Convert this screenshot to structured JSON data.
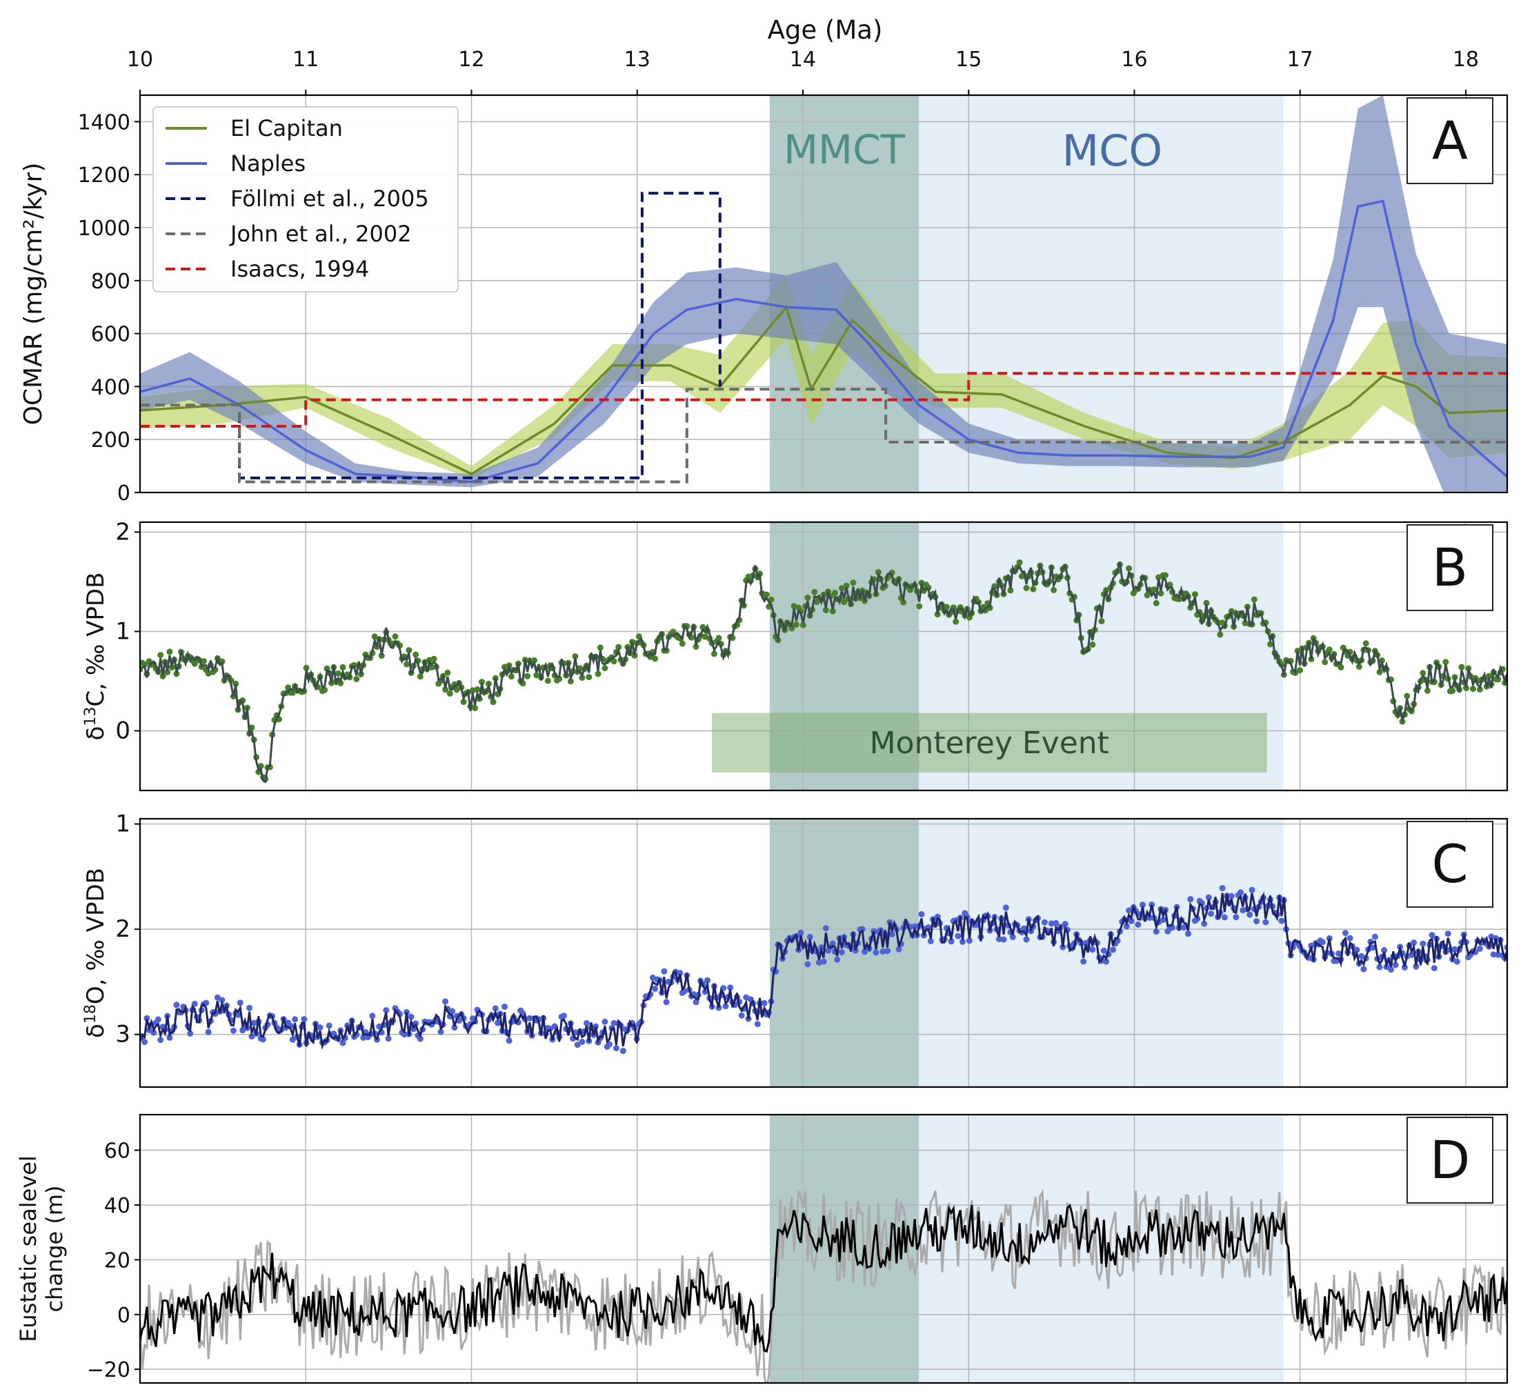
{
  "x_axis": {
    "label": "Age (Ma)",
    "ticks": [
      "10",
      "11",
      "12",
      "13",
      "14",
      "15",
      "16",
      "17",
      "18"
    ]
  },
  "bands": [
    {
      "name": "MMCT",
      "from": 13.8,
      "to": 14.7,
      "color": "#7fa8a4"
    },
    {
      "name": "MCO",
      "from": 14.7,
      "to": 16.9,
      "color": "#c9dff0"
    }
  ],
  "chart_data": [
    {
      "panel": "A",
      "type": "line",
      "ylabel": "OCMAR (mg/cm²/kyr)",
      "ylim": [
        0,
        1500
      ],
      "yticks": [
        "0",
        "200",
        "400",
        "600",
        "800",
        "1000",
        "1200",
        "1400"
      ],
      "legend": [
        {
          "name": "El Capitan",
          "color": "#6f8a2a",
          "dash": false
        },
        {
          "name": "Naples",
          "color": "#4f62d6",
          "dash": false
        },
        {
          "name": "Föllmi et al., 2005",
          "color": "#0c1566",
          "dash": true
        },
        {
          "name": "John et al., 2002",
          "color": "#6b6b6b",
          "dash": true
        },
        {
          "name": "Isaacs, 1994",
          "color": "#cc1a1a",
          "dash": true
        }
      ],
      "series": [
        {
          "name": "El Capitan",
          "color": "#6f8a2a",
          "x": [
            10,
            10.5,
            11,
            11.5,
            12,
            12.5,
            12.85,
            13.2,
            13.5,
            13.9,
            14.05,
            14.3,
            14.5,
            14.8,
            15.2,
            15.7,
            16.2,
            16.6,
            16.9,
            17.3,
            17.5,
            17.7,
            17.9,
            18.25
          ],
          "y": [
            310,
            330,
            360,
            220,
            70,
            260,
            480,
            480,
            400,
            700,
            390,
            650,
            530,
            380,
            370,
            250,
            150,
            130,
            190,
            330,
            440,
            400,
            300,
            310
          ],
          "band_lo": [
            240,
            260,
            320,
            170,
            50,
            210,
            420,
            420,
            300,
            580,
            250,
            540,
            430,
            320,
            320,
            200,
            110,
            90,
            120,
            200,
            330,
            250,
            130,
            150
          ],
          "band_hi": [
            360,
            400,
            410,
            280,
            100,
            330,
            560,
            560,
            520,
            820,
            520,
            800,
            640,
            450,
            450,
            300,
            190,
            170,
            260,
            460,
            640,
            650,
            520,
            510
          ]
        },
        {
          "name": "Naples",
          "color": "#4f62d6",
          "x": [
            10,
            10.3,
            10.6,
            11,
            11.3,
            11.6,
            12,
            12.4,
            12.8,
            13.1,
            13.3,
            13.6,
            13.9,
            14.2,
            14.4,
            14.7,
            15,
            15.3,
            15.6,
            15.9,
            16.3,
            16.7,
            16.9,
            17.2,
            17.35,
            17.5,
            17.7,
            17.9,
            18.25
          ],
          "y": [
            380,
            430,
            330,
            160,
            70,
            60,
            40,
            110,
            350,
            600,
            690,
            730,
            700,
            690,
            560,
            330,
            200,
            150,
            140,
            140,
            135,
            135,
            170,
            650,
            1080,
            1100,
            560,
            250,
            60
          ],
          "band_lo": [
            310,
            350,
            260,
            110,
            40,
            30,
            20,
            60,
            260,
            480,
            560,
            600,
            580,
            560,
            440,
            260,
            150,
            110,
            100,
            100,
            95,
            95,
            120,
            430,
            700,
            700,
            250,
            -50,
            -60
          ],
          "band_hi": [
            450,
            530,
            420,
            230,
            110,
            80,
            70,
            170,
            440,
            720,
            830,
            850,
            820,
            870,
            700,
            420,
            260,
            200,
            200,
            190,
            185,
            185,
            250,
            880,
            1450,
            1500,
            900,
            600,
            560
          ]
        },
        {
          "name": "Föllmi et al., 2005",
          "color": "#0c1566",
          "dash": true,
          "x": [
            10.6,
            10.6,
            13.03,
            13.03,
            13.5,
            13.5
          ],
          "y": [
            300,
            55,
            55,
            1130,
            1130,
            400
          ]
        },
        {
          "name": "John et al., 2002",
          "color": "#6b6b6b",
          "dash": true,
          "x": [
            10,
            10.6,
            10.6,
            12.7,
            12.7,
            13.3,
            13.3,
            14.5,
            14.5,
            18.25
          ],
          "y": [
            330,
            330,
            40,
            40,
            40,
            40,
            390,
            390,
            190,
            190
          ]
        },
        {
          "name": "Isaacs, 1994",
          "color": "#cc1a1a",
          "dash": true,
          "x": [
            10,
            11,
            11,
            15,
            15,
            18.25
          ],
          "y": [
            250,
            250,
            350,
            350,
            450,
            450
          ]
        }
      ]
    },
    {
      "panel": "B",
      "type": "scatter",
      "ylabel_main": "C, ‰ VPDB",
      "ylabel_prefix": "δ",
      "ylabel_sup": "13",
      "ylim": [
        -0.6,
        2.1
      ],
      "yticks": [
        "0",
        "1",
        "2"
      ],
      "annotation": "Monterey Event",
      "annotation_span": [
        13.45,
        16.8
      ],
      "series": [
        {
          "color_points": "#4a7f2a",
          "color_line": "#3a4b4b",
          "x": [
            10,
            10.3,
            10.5,
            10.65,
            10.75,
            10.85,
            11,
            11.3,
            11.5,
            11.6,
            11.8,
            12,
            12.3,
            12.6,
            12.9,
            13.2,
            13.4,
            13.55,
            13.7,
            13.85,
            14.0,
            14.3,
            14.5,
            14.8,
            15.0,
            15.3,
            15.6,
            15.7,
            15.9,
            16.2,
            16.5,
            16.75,
            16.9,
            17.1,
            17.3,
            17.5,
            17.6,
            17.8,
            18,
            18.25
          ],
          "y": [
            0.6,
            0.7,
            0.65,
            0.1,
            -0.5,
            0.3,
            0.5,
            0.6,
            0.95,
            0.7,
            0.6,
            0.3,
            0.6,
            0.65,
            0.75,
            0.9,
            1.0,
            0.8,
            1.65,
            1.0,
            1.2,
            1.35,
            1.5,
            1.3,
            1.2,
            1.6,
            1.55,
            0.8,
            1.6,
            1.4,
            1.1,
            1.2,
            0.6,
            0.85,
            0.75,
            0.7,
            0.1,
            0.6,
            0.5,
            0.55
          ]
        }
      ]
    },
    {
      "panel": "C",
      "type": "scatter",
      "ylabel_main": "O, ‰ VPDB",
      "ylabel_prefix": "δ",
      "ylabel_sup": "18",
      "ylim": [
        3.5,
        0.95
      ],
      "yticks": [
        "1",
        "2",
        "3"
      ],
      "series": [
        {
          "color_points": "#4f62d6",
          "color_line": "#1d2366",
          "x": [
            10,
            10.5,
            11,
            11.5,
            12,
            12.5,
            13,
            13.05,
            13.3,
            13.6,
            13.8,
            13.85,
            14.2,
            14.4,
            14.7,
            15,
            15.3,
            15.6,
            15.8,
            16,
            16.3,
            16.6,
            16.9,
            16.95,
            17.3,
            17.6,
            18,
            18.25
          ],
          "y": [
            2.95,
            2.8,
            3.0,
            2.9,
            2.85,
            2.95,
            3.0,
            2.6,
            2.5,
            2.7,
            2.8,
            2.2,
            2.15,
            2.1,
            2.0,
            2.0,
            1.95,
            2.1,
            2.2,
            1.9,
            1.9,
            1.75,
            1.8,
            2.2,
            2.2,
            2.25,
            2.15,
            2.2
          ]
        }
      ]
    },
    {
      "panel": "D",
      "type": "line",
      "ylabel_line1": "Eustatic sealevel",
      "ylabel_line2": "change (m)",
      "ylim": [
        -25,
        73
      ],
      "yticks": [
        "−20",
        "0",
        "20",
        "40",
        "60"
      ],
      "series": [
        {
          "color_points": "#aaaaaa",
          "color_line": "#000000",
          "x": [
            10,
            10.5,
            10.8,
            11,
            11.5,
            12,
            12.3,
            12.6,
            12.9,
            13.2,
            13.5,
            13.8,
            13.85,
            14.2,
            14.5,
            14.7,
            15,
            15.3,
            15.6,
            15.9,
            16,
            16.3,
            16.6,
            16.9,
            17,
            17.3,
            17.6,
            17.8,
            18,
            18.25
          ],
          "y": [
            -5,
            0,
            15,
            0,
            0,
            2,
            10,
            5,
            0,
            5,
            10,
            -12,
            30,
            28,
            25,
            30,
            32,
            25,
            35,
            22,
            30,
            30,
            28,
            30,
            0,
            0,
            5,
            -5,
            5,
            5
          ]
        }
      ]
    }
  ],
  "panel_letters": [
    "A",
    "B",
    "C",
    "D"
  ],
  "band_labels": {
    "mmct": "MMCT",
    "mco": "MCO"
  }
}
